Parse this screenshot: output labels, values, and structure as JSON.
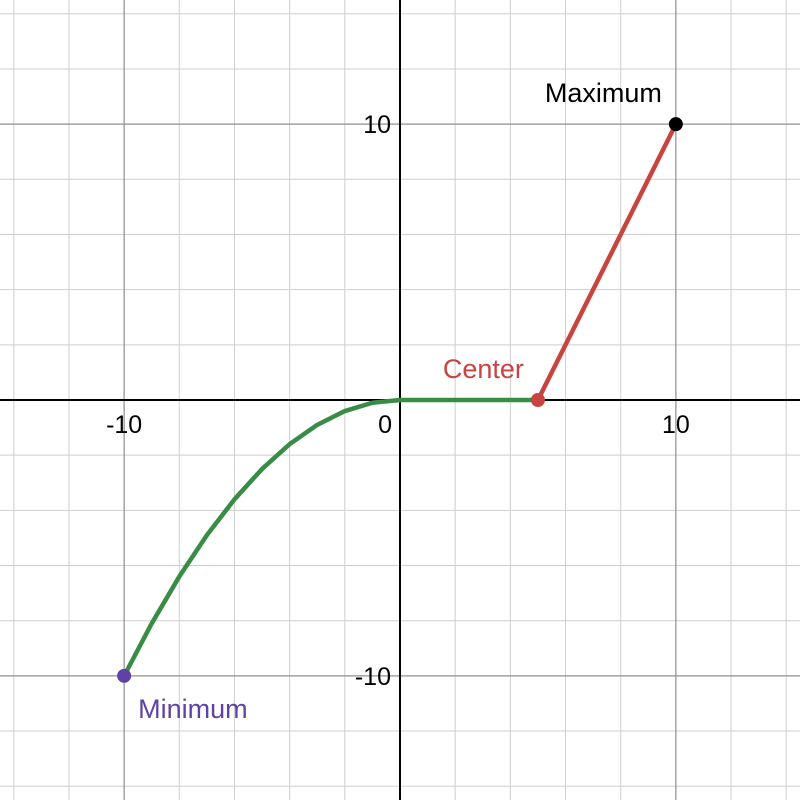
{
  "chart_data": {
    "type": "line",
    "xlim": [
      -14.5,
      14.5
    ],
    "ylim": [
      -14.5,
      14.5
    ],
    "grid": true,
    "minor_grid_step": 2,
    "major_grid_step": 10,
    "x_tick_labels": [
      {
        "value": -10,
        "label": "-10"
      },
      {
        "value": 0,
        "label": "0"
      },
      {
        "value": 10,
        "label": "10"
      }
    ],
    "y_tick_labels": [
      {
        "value": 10,
        "label": "10"
      },
      {
        "value": -10,
        "label": "-10"
      }
    ],
    "series": [
      {
        "color": "#388c46",
        "style": "curve",
        "x": [
          -10,
          -9,
          -8,
          -7,
          -6,
          -5,
          -4,
          -3,
          -2,
          -1,
          0,
          1,
          2,
          3,
          4,
          5
        ],
        "y": [
          -10,
          -8.1,
          -6.4,
          -4.9,
          -3.6,
          -2.5,
          -1.6,
          -0.9,
          -0.4,
          -0.1,
          0,
          0.0,
          0.0,
          0.0,
          0.0,
          0
        ]
      },
      {
        "color": "#c74440",
        "style": "line",
        "x": [
          5,
          10
        ],
        "y": [
          0,
          10
        ]
      }
    ],
    "points": [
      {
        "label": "Maximum",
        "x": 10,
        "y": 10,
        "color": "#000000",
        "label_position": "above-left"
      },
      {
        "label": "Center",
        "x": 5,
        "y": 0,
        "color": "#c74440",
        "label_position": "above-left"
      },
      {
        "label": "Minimum",
        "x": -10,
        "y": -10,
        "color": "#6042a6",
        "label_position": "below-right"
      }
    ]
  }
}
